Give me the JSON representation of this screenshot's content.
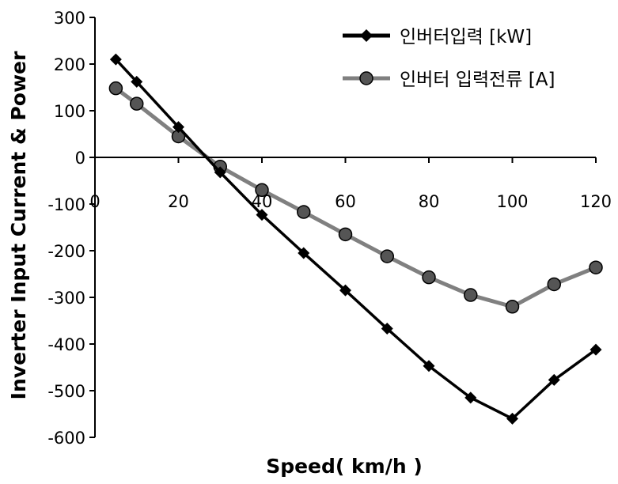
{
  "chart_data": {
    "type": "line",
    "xlabel": "Speed( km/h )",
    "ylabel": "Inverter Input Current & Power",
    "xlim": [
      0,
      120
    ],
    "ylim": [
      -600,
      300
    ],
    "xticks": [
      "0",
      "20",
      "40",
      "60",
      "80",
      "100",
      "120"
    ],
    "yticks": [
      "300",
      "200",
      "100",
      "0",
      "-100",
      "-200",
      "-300",
      "-400",
      "-500",
      "-600"
    ],
    "grid": false,
    "legend_position": "top-right",
    "series": [
      {
        "name": "인버터입력 [kW]",
        "color": "#000000",
        "marker": "diamond",
        "x": [
          5,
          10,
          20,
          30,
          40,
          50,
          60,
          70,
          80,
          90,
          100,
          110,
          120
        ],
        "y": [
          210,
          162,
          65,
          -32,
          -123,
          -205,
          -285,
          -367,
          -447,
          -515,
          -560,
          -477,
          -412
        ]
      },
      {
        "name": "인버터 입력전류 [A]",
        "color": "#808080",
        "marker": "circle",
        "x": [
          5,
          10,
          20,
          30,
          40,
          50,
          60,
          70,
          80,
          90,
          100,
          110,
          120
        ],
        "y": [
          148,
          115,
          45,
          -20,
          -70,
          -117,
          -165,
          -212,
          -257,
          -295,
          -320,
          -272,
          -236
        ]
      }
    ]
  }
}
